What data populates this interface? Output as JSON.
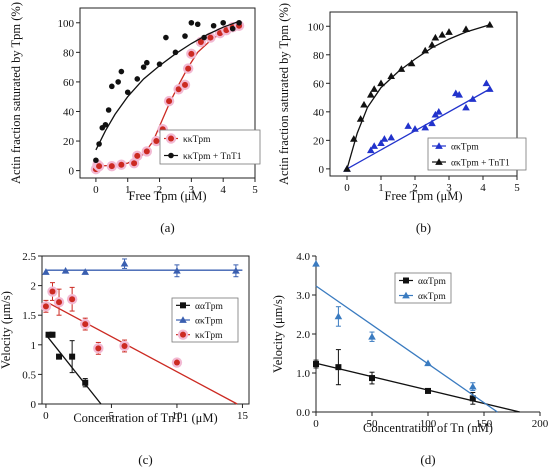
{
  "chart_data": [
    {
      "id": "a",
      "type": "scatter",
      "panel_label": "(a)",
      "xlabel": "Free Tpm (μM)",
      "ylabel": "Actin fraction saturated by Tpm (%)",
      "xlim": [
        -0.5,
        5
      ],
      "ylim": [
        -5,
        110
      ],
      "xticks": [
        0,
        1,
        2,
        3,
        4,
        5
      ],
      "yticks": [
        0,
        20,
        40,
        60,
        80,
        100
      ],
      "legend_position": "bottom-right",
      "series": [
        {
          "name": "κκTpm",
          "marker": "circle-halo",
          "color": "#cc2a22",
          "halo_color": "#f2b9d3",
          "points": [
            [
              0.0,
              1
            ],
            [
              0.05,
              4
            ],
            [
              0.1,
              3
            ],
            [
              0.5,
              3
            ],
            [
              0.8,
              4
            ],
            [
              1.2,
              5
            ],
            [
              1.3,
              10
            ],
            [
              1.6,
              13
            ],
            [
              1.9,
              20
            ],
            [
              2.1,
              28
            ],
            [
              2.3,
              47
            ],
            [
              2.6,
              55
            ],
            [
              2.8,
              58
            ],
            [
              2.9,
              69
            ],
            [
              3.0,
              79
            ],
            [
              3.3,
              87
            ],
            [
              3.6,
              90
            ],
            [
              3.9,
              93
            ],
            [
              4.1,
              95
            ],
            [
              4.3,
              97
            ],
            [
              4.5,
              98
            ]
          ],
          "fit": [
            [
              0.0,
              3
            ],
            [
              0.5,
              3.5
            ],
            [
              1.0,
              5
            ],
            [
              1.5,
              11
            ],
            [
              1.8,
              20
            ],
            [
              2.0,
              30
            ],
            [
              2.3,
              45
            ],
            [
              2.6,
              58
            ],
            [
              2.9,
              70
            ],
            [
              3.2,
              80
            ],
            [
              3.6,
              88
            ],
            [
              4.0,
              94
            ],
            [
              4.5,
              97
            ]
          ]
        },
        {
          "name": "κκTpm + TnT1",
          "marker": "circle",
          "color": "#111111",
          "points": [
            [
              0.0,
              7
            ],
            [
              0.1,
              18
            ],
            [
              0.2,
              29
            ],
            [
              0.3,
              31
            ],
            [
              0.4,
              41
            ],
            [
              0.5,
              57
            ],
            [
              0.7,
              60
            ],
            [
              0.8,
              67
            ],
            [
              1.0,
              53
            ],
            [
              1.3,
              62
            ],
            [
              1.5,
              70
            ],
            [
              1.6,
              73
            ],
            [
              2.0,
              72
            ],
            [
              2.2,
              90
            ],
            [
              2.5,
              80
            ],
            [
              2.8,
              91
            ],
            [
              3.0,
              100
            ],
            [
              3.2,
              99
            ],
            [
              3.4,
              90
            ],
            [
              3.7,
              98
            ],
            [
              4.0,
              100
            ],
            [
              4.3,
              96
            ],
            [
              4.5,
              100
            ]
          ],
          "fit": [
            [
              0.0,
              14
            ],
            [
              0.3,
              27
            ],
            [
              0.6,
              38
            ],
            [
              1.0,
              50
            ],
            [
              1.5,
              62
            ],
            [
              2.0,
              71
            ],
            [
              2.5,
              79
            ],
            [
              3.0,
              86
            ],
            [
              3.5,
              92
            ],
            [
              4.0,
              97
            ],
            [
              4.5,
              101
            ]
          ]
        }
      ]
    },
    {
      "id": "b",
      "type": "scatter",
      "panel_label": "(b)",
      "xlabel": "Free Tpm (μM)",
      "ylabel": "Actin fraction saturated by Tpm (%)",
      "xlim": [
        -0.5,
        5
      ],
      "ylim": [
        -5,
        110
      ],
      "xticks": [
        0,
        1,
        2,
        3,
        4,
        5
      ],
      "yticks": [
        0,
        20,
        40,
        60,
        80,
        100
      ],
      "legend_position": "bottom-right",
      "series": [
        {
          "name": "ακTpm",
          "marker": "triangle",
          "color": "#2233cc",
          "points": [
            [
              0.0,
              0
            ],
            [
              0.7,
              13
            ],
            [
              0.8,
              16
            ],
            [
              1.0,
              18
            ],
            [
              1.1,
              21
            ],
            [
              1.3,
              22
            ],
            [
              1.8,
              30
            ],
            [
              2.0,
              28
            ],
            [
              2.3,
              29
            ],
            [
              2.5,
              32
            ],
            [
              2.6,
              38
            ],
            [
              2.7,
              40
            ],
            [
              3.2,
              53
            ],
            [
              3.3,
              52
            ],
            [
              3.5,
              43
            ],
            [
              3.7,
              49
            ],
            [
              4.1,
              60
            ],
            [
              4.2,
              56
            ]
          ],
          "fit": [
            [
              0.0,
              0
            ],
            [
              4.2,
              56
            ]
          ]
        },
        {
          "name": "ακTpm + TnT1",
          "marker": "triangle",
          "color": "#111111",
          "points": [
            [
              0.0,
              0
            ],
            [
              0.2,
              21
            ],
            [
              0.4,
              35
            ],
            [
              0.5,
              45
            ],
            [
              0.7,
              52
            ],
            [
              0.8,
              56
            ],
            [
              1.0,
              60
            ],
            [
              1.3,
              65
            ],
            [
              1.6,
              70
            ],
            [
              1.9,
              74
            ],
            [
              2.3,
              83
            ],
            [
              2.5,
              87
            ],
            [
              2.6,
              92
            ],
            [
              2.8,
              94
            ],
            [
              3.0,
              96
            ],
            [
              3.5,
              98
            ],
            [
              4.2,
              101
            ]
          ],
          "fit": [
            [
              0.0,
              0
            ],
            [
              0.3,
              25
            ],
            [
              0.6,
              43
            ],
            [
              1.0,
              57
            ],
            [
              1.5,
              68
            ],
            [
              2.0,
              77
            ],
            [
              2.5,
              85
            ],
            [
              3.0,
              91
            ],
            [
              3.5,
              96
            ],
            [
              4.2,
              101
            ]
          ]
        }
      ]
    },
    {
      "id": "c",
      "type": "scatter",
      "panel_label": "(c)",
      "xlabel": "Concentration of TnT1 (μM)",
      "ylabel": "Velocity (μm/s)",
      "xlim": [
        -0.3,
        15.5
      ],
      "ylim": [
        0,
        2.5
      ],
      "xticks": [
        0,
        5,
        10,
        15
      ],
      "yticks": [
        0,
        0.5,
        1,
        1.5,
        2,
        2.5
      ],
      "ytick_labels": [
        "0",
        "0.5",
        "1",
        "1.5",
        "2",
        "2.5"
      ],
      "legend_position": "upper-right",
      "series": [
        {
          "name": "ααTpm",
          "marker": "square",
          "color": "#111111",
          "points": [
            [
              0.2,
              1.17
            ],
            [
              0.5,
              1.17
            ],
            [
              1.0,
              0.8
            ],
            [
              2.0,
              0.8
            ],
            [
              3.0,
              0.36
            ]
          ],
          "errors": [
            0,
            0.04,
            0,
            0.27,
            0.07
          ],
          "fit": [
            [
              0.0,
              1.17
            ],
            [
              4.2,
              0
            ]
          ]
        },
        {
          "name": "ακTpm",
          "marker": "triangle",
          "color": "#3a5fb0",
          "points": [
            [
              0.0,
              2.23
            ],
            [
              1.5,
              2.25
            ],
            [
              3.0,
              2.23
            ],
            [
              6.0,
              2.37
            ],
            [
              10.0,
              2.25
            ],
            [
              14.5,
              2.25
            ]
          ],
          "errors": [
            0,
            0,
            0,
            0.08,
            0.1,
            0.1
          ],
          "fit": [
            [
              0.0,
              2.26
            ],
            [
              15.0,
              2.26
            ]
          ]
        },
        {
          "name": "κκTpm",
          "marker": "circle-halo",
          "color": "#cc2a22",
          "halo_color": "#f2b9d3",
          "points": [
            [
              0.0,
              1.65
            ],
            [
              0.5,
              1.9
            ],
            [
              1.0,
              1.72
            ],
            [
              2.0,
              1.77
            ],
            [
              3.0,
              1.35
            ],
            [
              4.0,
              0.94
            ],
            [
              6.0,
              0.98
            ],
            [
              10.0,
              0.7
            ]
          ],
          "errors": [
            0.1,
            0.15,
            0.22,
            0.2,
            0.1,
            0.1,
            0.1,
            0
          ],
          "fit": [
            [
              0.0,
              1.73
            ],
            [
              14.6,
              0
            ]
          ]
        }
      ]
    },
    {
      "id": "d",
      "type": "scatter",
      "panel_label": "(d)",
      "xlabel": "Concentration of Tn (nM)",
      "ylabel": "Velocity (μm/s)",
      "xlim": [
        0,
        200
      ],
      "ylim": [
        0,
        4
      ],
      "xticks": [
        0,
        50,
        100,
        150,
        200
      ],
      "yticks": [
        0,
        1,
        2,
        3,
        4
      ],
      "ytick_labels": [
        "0.0",
        "1.0",
        "2.0",
        "3.0",
        "4.0"
      ],
      "legend_position": "top-center",
      "series": [
        {
          "name": "ααTpm",
          "marker": "square",
          "color": "#111111",
          "points": [
            [
              0,
              1.23
            ],
            [
              20,
              1.15
            ],
            [
              50,
              0.87
            ],
            [
              100,
              0.54
            ],
            [
              140,
              0.35
            ]
          ],
          "errors": [
            0.1,
            0.45,
            0.15,
            0.05,
            0.15
          ],
          "fit": [
            [
              0,
              1.25
            ],
            [
              182,
              0
            ]
          ]
        },
        {
          "name": "ακTpm",
          "marker": "triangle",
          "color": "#3a7bc0",
          "points": [
            [
              0,
              3.8
            ],
            [
              20,
              2.45
            ],
            [
              50,
              1.93
            ],
            [
              100,
              1.25
            ],
            [
              140,
              0.65
            ]
          ],
          "errors": [
            0,
            0.25,
            0.12,
            0,
            0.1
          ],
          "fit": [
            [
              0,
              3.23
            ],
            [
              162,
              0
            ]
          ]
        }
      ]
    }
  ]
}
